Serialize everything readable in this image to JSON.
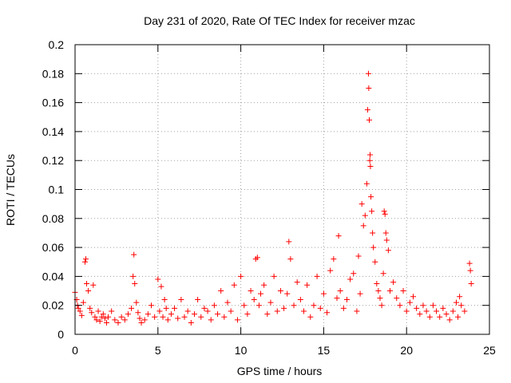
{
  "chart_data": {
    "type": "scatter",
    "title": "Day 231 of 2020, Rate Of TEC Index for receiver mzac",
    "xlabel": "GPS time / hours",
    "ylabel": "ROTI / TECUs",
    "xlim": [
      0,
      25
    ],
    "ylim": [
      0,
      0.2
    ],
    "x_ticks": [
      0,
      5,
      10,
      15,
      20,
      25
    ],
    "y_ticks": [
      0,
      0.02,
      0.04,
      0.06,
      0.08,
      0.1,
      0.12,
      0.14,
      0.16,
      0.18,
      0.2
    ],
    "x_tick_labels": [
      "0",
      "5",
      "10",
      "15",
      "20",
      "25"
    ],
    "y_tick_labels": [
      "0",
      "0.02",
      "0.04",
      "0.06",
      "0.08",
      "0.1",
      "0.12",
      "0.14",
      "0.16",
      "0.18",
      "0.2"
    ],
    "grid": true,
    "marker": "+",
    "color": "#ff0000",
    "series": [
      {
        "name": "ROTI",
        "x": [
          0.0,
          0.1,
          0.15,
          0.2,
          0.3,
          0.4,
          0.5,
          0.6,
          0.65,
          0.7,
          0.8,
          0.9,
          1.0,
          1.1,
          1.2,
          1.3,
          1.4,
          1.5,
          1.6,
          1.7,
          1.8,
          1.9,
          2.0,
          2.2,
          2.4,
          2.6,
          2.8,
          3.0,
          3.2,
          3.4,
          3.5,
          3.55,
          3.6,
          3.7,
          3.8,
          3.9,
          4.0,
          4.2,
          4.4,
          4.6,
          4.8,
          5.0,
          5.1,
          5.2,
          5.3,
          5.4,
          5.5,
          5.6,
          5.8,
          6.0,
          6.2,
          6.4,
          6.6,
          6.8,
          7.0,
          7.2,
          7.4,
          7.6,
          7.8,
          8.0,
          8.2,
          8.4,
          8.6,
          8.8,
          9.0,
          9.2,
          9.4,
          9.6,
          9.8,
          10.0,
          10.2,
          10.4,
          10.6,
          10.8,
          10.9,
          11.0,
          11.1,
          11.2,
          11.4,
          11.6,
          11.8,
          12.0,
          12.2,
          12.4,
          12.6,
          12.8,
          12.9,
          13.0,
          13.2,
          13.4,
          13.6,
          13.8,
          14.0,
          14.2,
          14.4,
          14.6,
          14.8,
          15.0,
          15.2,
          15.4,
          15.6,
          15.8,
          15.9,
          16.0,
          16.2,
          16.4,
          16.6,
          16.8,
          17.0,
          17.1,
          17.2,
          17.3,
          17.4,
          17.5,
          17.6,
          17.65,
          17.7,
          17.72,
          17.75,
          17.78,
          17.8,
          17.82,
          17.85,
          17.9,
          17.95,
          18.0,
          18.1,
          18.2,
          18.3,
          18.4,
          18.5,
          18.6,
          18.65,
          18.7,
          18.75,
          18.8,
          18.9,
          19.0,
          19.2,
          19.4,
          19.6,
          19.8,
          20.0,
          20.2,
          20.4,
          20.6,
          20.8,
          21.0,
          21.2,
          21.4,
          21.6,
          21.8,
          22.0,
          22.2,
          22.4,
          22.6,
          22.8,
          23.0,
          23.1,
          23.2,
          23.3,
          23.5,
          23.8,
          23.85,
          23.9
        ],
        "y": [
          0.029,
          0.024,
          0.02,
          0.018,
          0.016,
          0.013,
          0.022,
          0.05,
          0.052,
          0.035,
          0.03,
          0.018,
          0.015,
          0.034,
          0.012,
          0.01,
          0.016,
          0.009,
          0.012,
          0.014,
          0.011,
          0.008,
          0.012,
          0.016,
          0.01,
          0.008,
          0.012,
          0.01,
          0.014,
          0.018,
          0.04,
          0.055,
          0.035,
          0.022,
          0.015,
          0.011,
          0.008,
          0.01,
          0.014,
          0.02,
          0.012,
          0.038,
          0.016,
          0.033,
          0.012,
          0.024,
          0.018,
          0.01,
          0.014,
          0.018,
          0.011,
          0.024,
          0.012,
          0.016,
          0.008,
          0.014,
          0.024,
          0.012,
          0.018,
          0.016,
          0.01,
          0.02,
          0.014,
          0.03,
          0.012,
          0.022,
          0.016,
          0.034,
          0.01,
          0.04,
          0.02,
          0.014,
          0.03,
          0.024,
          0.052,
          0.053,
          0.02,
          0.028,
          0.034,
          0.014,
          0.022,
          0.04,
          0.016,
          0.03,
          0.018,
          0.028,
          0.064,
          0.052,
          0.02,
          0.036,
          0.024,
          0.016,
          0.034,
          0.012,
          0.02,
          0.04,
          0.018,
          0.028,
          0.015,
          0.044,
          0.052,
          0.025,
          0.068,
          0.03,
          0.018,
          0.024,
          0.038,
          0.042,
          0.016,
          0.054,
          0.028,
          0.09,
          0.075,
          0.082,
          0.104,
          0.155,
          0.18,
          0.17,
          0.148,
          0.12,
          0.124,
          0.116,
          0.095,
          0.085,
          0.07,
          0.06,
          0.05,
          0.035,
          0.03,
          0.025,
          0.02,
          0.042,
          0.085,
          0.083,
          0.07,
          0.065,
          0.058,
          0.03,
          0.036,
          0.025,
          0.02,
          0.03,
          0.016,
          0.022,
          0.026,
          0.018,
          0.014,
          0.02,
          0.016,
          0.012,
          0.02,
          0.016,
          0.012,
          0.018,
          0.014,
          0.01,
          0.016,
          0.022,
          0.012,
          0.026,
          0.02,
          0.016,
          0.049,
          0.044,
          0.035
        ]
      }
    ]
  }
}
